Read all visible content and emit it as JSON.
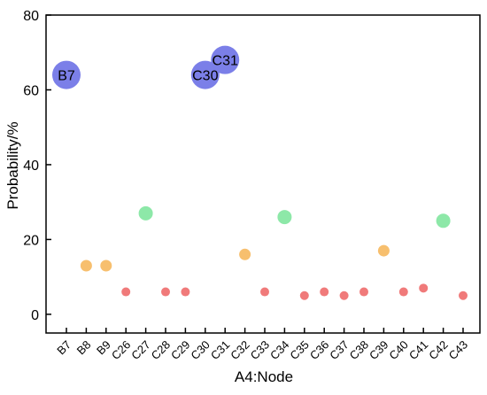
{
  "chart_data": {
    "type": "scatter",
    "title": "",
    "xlabel": "A4:Node",
    "ylabel": "Probability/%",
    "ylim": [
      -5,
      80
    ],
    "yticks": [
      0,
      20,
      40,
      60,
      80
    ],
    "grid": false,
    "legend": "none",
    "categories": [
      "B7",
      "B8",
      "B9",
      "C26",
      "C27",
      "C28",
      "C29",
      "C30",
      "C31",
      "C32",
      "C33",
      "C34",
      "C35",
      "C36",
      "C37",
      "C38",
      "C39",
      "C40",
      "C41",
      "C42",
      "C43"
    ],
    "values": [
      64,
      13,
      13,
      6,
      27,
      6,
      6,
      64,
      68,
      16,
      6,
      26,
      5,
      6,
      5,
      6,
      17,
      6,
      7,
      25,
      5
    ],
    "point_labels": [
      "B7",
      "",
      "",
      "",
      "",
      "",
      "",
      "C30",
      "C31",
      "",
      "",
      "",
      "",
      "",
      "",
      "",
      "",
      "",
      "",
      "",
      ""
    ],
    "colors": {
      "high": "#7b7fe8",
      "mid_green": "#8de8a8",
      "mid_orange": "#f7bf6e",
      "low": "#f07a7a"
    }
  }
}
